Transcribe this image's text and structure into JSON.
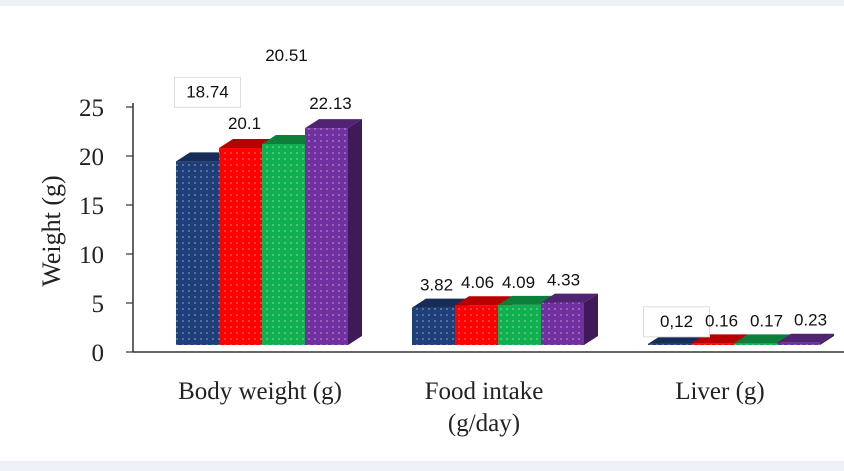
{
  "chart_data": {
    "type": "bar",
    "style": "3d-clustered-column",
    "categories": [
      "Body weight (g)",
      "Food intake (g/day)",
      "Liver (g)"
    ],
    "series": [
      {
        "values": [
          18.74,
          3.82,
          0.12
        ],
        "labels": [
          "18.74",
          "3.82",
          "0,12"
        ],
        "color": "#1f3f7a"
      },
      {
        "values": [
          20.1,
          4.06,
          0.16
        ],
        "labels": [
          "20.1",
          "4.06",
          "0.16"
        ],
        "color": "#ff0000"
      },
      {
        "values": [
          20.51,
          4.09,
          0.17
        ],
        "labels": [
          "20.51",
          "4.09",
          "0.17"
        ],
        "color": "#10b050"
      },
      {
        "values": [
          22.13,
          4.33,
          0.23
        ],
        "labels": [
          "22.13",
          "4.33",
          "0.23"
        ],
        "color": "#7030a0"
      }
    ],
    "ylabel": "Weight (g)",
    "ylim": [
      0,
      25
    ],
    "yticks": [
      0,
      5,
      10,
      15,
      20,
      25
    ],
    "grid": false,
    "legend": "none"
  }
}
